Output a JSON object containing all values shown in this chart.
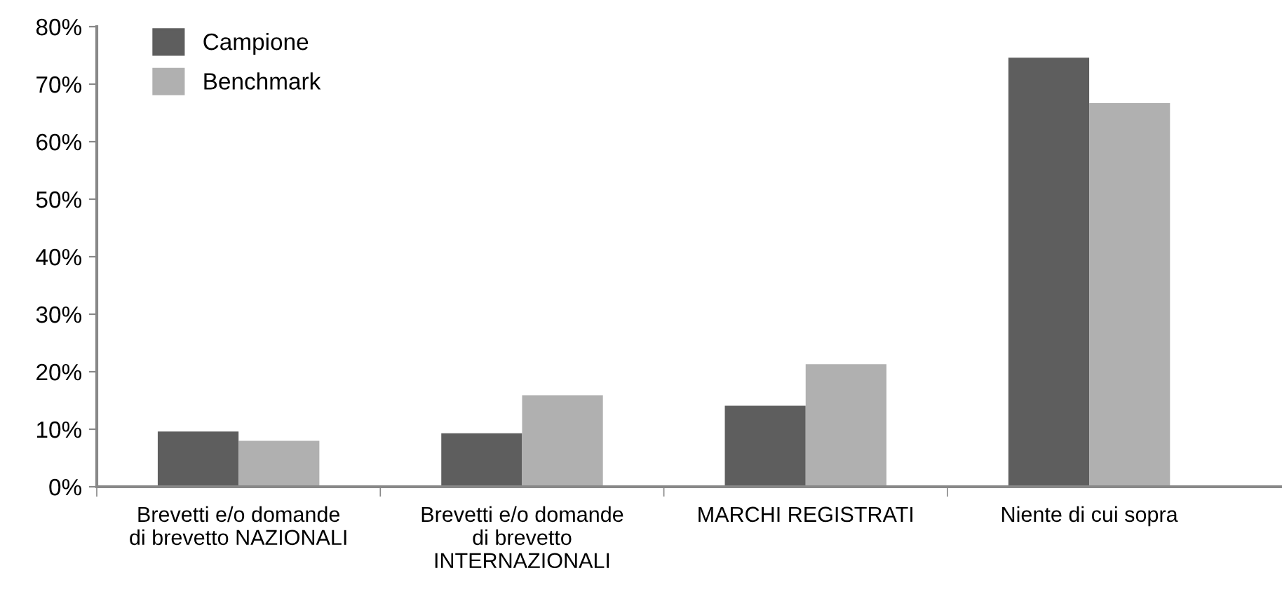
{
  "chart_data": {
    "type": "bar",
    "categories": [
      "Brevetti e/o domande\ndi brevetto NAZIONALI",
      "Brevetti e/o domande\ndi brevetto\nINTERNAZIONALI",
      "MARCHI REGISTRATI",
      "Niente di cui sopra"
    ],
    "series": [
      {
        "name": "Campione",
        "color": "#5e5e5e",
        "values": [
          9.6,
          9.3,
          14.1,
          74.6
        ]
      },
      {
        "name": "Benchmark",
        "color": "#b0b0b0",
        "values": [
          8.0,
          15.9,
          21.3,
          66.7
        ]
      }
    ],
    "ylim": [
      0,
      80
    ],
    "yticks": [
      {
        "value": 0,
        "label": "0%"
      },
      {
        "value": 10,
        "label": "10%"
      },
      {
        "value": 20,
        "label": "20%"
      },
      {
        "value": 30,
        "label": "30%"
      },
      {
        "value": 40,
        "label": "40%"
      },
      {
        "value": 50,
        "label": "50%"
      },
      {
        "value": 60,
        "label": "60%"
      },
      {
        "value": 70,
        "label": "70%"
      },
      {
        "value": 80,
        "label": "80%"
      }
    ],
    "grid": false,
    "legend": "top left"
  }
}
